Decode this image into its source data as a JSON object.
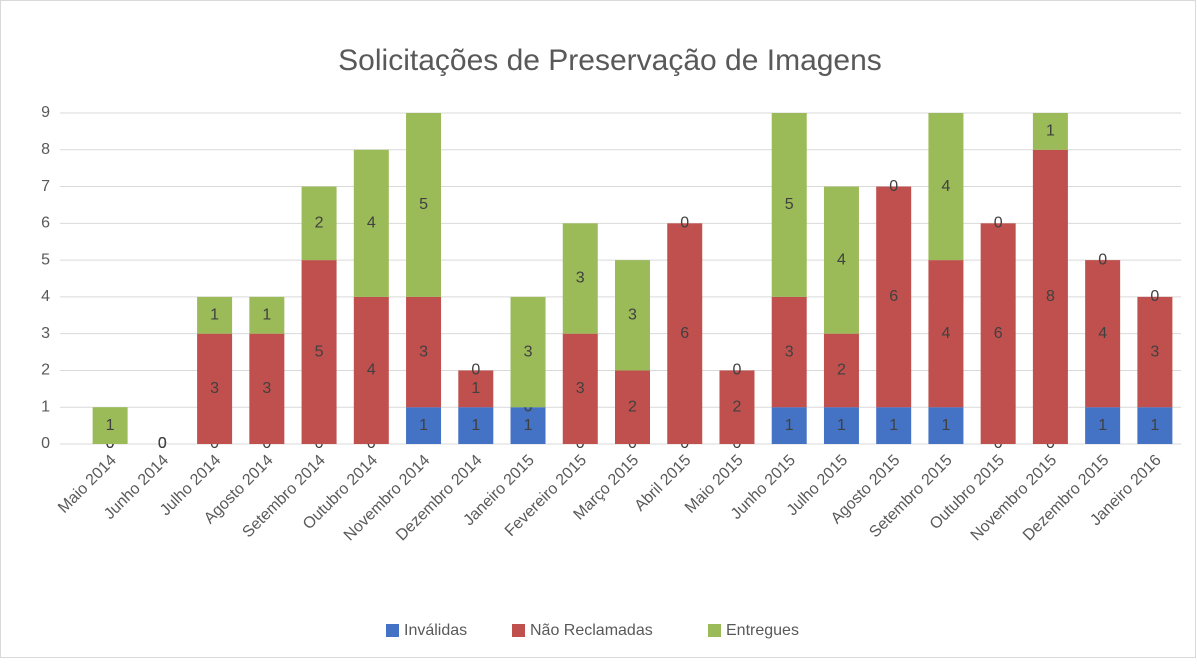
{
  "chart_data": {
    "type": "stacked_bar",
    "title": "Solicitações de Preservação de Imagens",
    "categories": [
      "Maio 2014",
      "Junho 2014",
      "Julho 2014",
      "Agosto 2014",
      "Setembro 2014",
      "Outubro 2014",
      "Novembro 2014",
      "Dezembro 2014",
      "Janeiro 2015",
      "Fevereiro 2015",
      "Março 2015",
      "Abril 2015",
      "Maio 2015",
      "Junho 2015",
      "Julho 2015",
      "Agosto 2015",
      "Setembro 2015",
      "Outubro 2015",
      "Novembro 2015",
      "Dezembro 2015",
      "Janeiro 2016"
    ],
    "series": [
      {
        "name": "Inválidas",
        "color": "#4472c4",
        "values": [
          0,
          0,
          0,
          0,
          0,
          0,
          1,
          1,
          1,
          0,
          0,
          0,
          0,
          1,
          1,
          1,
          1,
          0,
          0,
          1,
          1
        ]
      },
      {
        "name": "Não Reclamadas",
        "color": "#c0504d",
        "values": [
          0,
          0,
          3,
          3,
          5,
          4,
          3,
          1,
          0,
          3,
          2,
          6,
          2,
          3,
          2,
          6,
          4,
          6,
          8,
          4,
          3
        ]
      },
      {
        "name": "Entregues",
        "color": "#9bbb59",
        "values": [
          1,
          0,
          1,
          1,
          2,
          4,
          5,
          0,
          3,
          3,
          3,
          0,
          0,
          5,
          4,
          0,
          4,
          0,
          1,
          0,
          0
        ]
      }
    ],
    "ylim": [
      0,
      9
    ],
    "yticks": [
      0,
      1,
      2,
      3,
      4,
      5,
      6,
      7,
      8,
      9
    ],
    "grid": true,
    "legend": "bottom"
  }
}
